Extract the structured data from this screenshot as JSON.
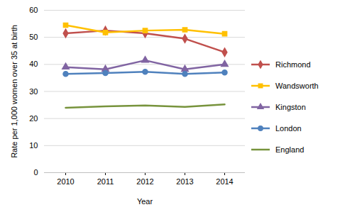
{
  "chart_data": {
    "type": "line",
    "x_label": "Year",
    "y_label": "Rate per 1,000 women over 35 at birth",
    "categories": [
      "2010",
      "2011",
      "2012",
      "2013",
      "2014"
    ],
    "series": [
      {
        "name": "Richmond",
        "color": "#C0504D",
        "marker": "diamond",
        "values": [
          51.5,
          52.5,
          51.5,
          49.5,
          44.5
        ]
      },
      {
        "name": "Wandsworth",
        "color": "#FFC000",
        "marker": "square",
        "values": [
          54.5,
          51.8,
          52.5,
          52.8,
          51.3
        ]
      },
      {
        "name": "Kingston",
        "color": "#8064A2",
        "marker": "triangle",
        "values": [
          39,
          38.2,
          41.5,
          38.2,
          40
        ]
      },
      {
        "name": "London",
        "color": "#4F81BD",
        "marker": "circle",
        "values": [
          36.5,
          36.8,
          37.3,
          36.5,
          37
        ]
      },
      {
        "name": "England",
        "color": "#77933C",
        "marker": "none",
        "values": [
          24,
          24.5,
          24.8,
          24.3,
          25.2
        ]
      }
    ],
    "ylim": [
      0,
      60
    ],
    "yticks": [
      0,
      10,
      20,
      30,
      40,
      50,
      60
    ],
    "grid": true,
    "legend": "right"
  }
}
